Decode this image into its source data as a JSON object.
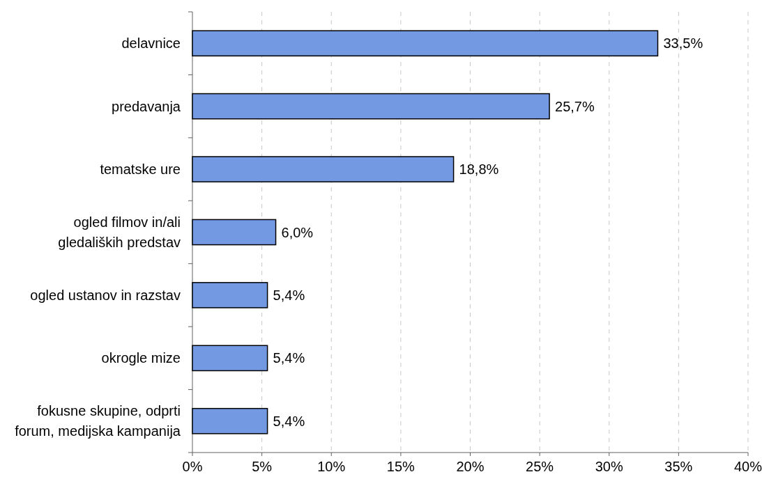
{
  "chart_data": {
    "type": "bar",
    "orientation": "horizontal",
    "categories": [
      "delavnice",
      "predavanja",
      "tematske ure",
      "ogled filmov in/ali gledaliških predstav",
      "ogled ustanov in razstav",
      "okrogle mize",
      "fokusne skupine, odprti forum, medijska kampanija"
    ],
    "values": [
      33.5,
      25.7,
      18.8,
      6.0,
      5.4,
      5.4,
      5.4
    ],
    "color": "#7299e2",
    "xlim": [
      0,
      40
    ],
    "xticks": [
      {
        "value": 0,
        "label": "0%"
      },
      {
        "value": 5,
        "label": "5%"
      },
      {
        "value": 10,
        "label": "10%"
      },
      {
        "value": 15,
        "label": "15%"
      },
      {
        "value": 20,
        "label": "20%"
      },
      {
        "value": 25,
        "label": "25%"
      },
      {
        "value": 30,
        "label": "30%"
      },
      {
        "value": 35,
        "label": "35%"
      },
      {
        "value": 40,
        "label": "40%"
      }
    ],
    "grid": "x",
    "value_labels": [
      "33,5%",
      "25,7%",
      "18,8%",
      "6,0%",
      "5,4%",
      "5,4%",
      "5,4%"
    ]
  }
}
